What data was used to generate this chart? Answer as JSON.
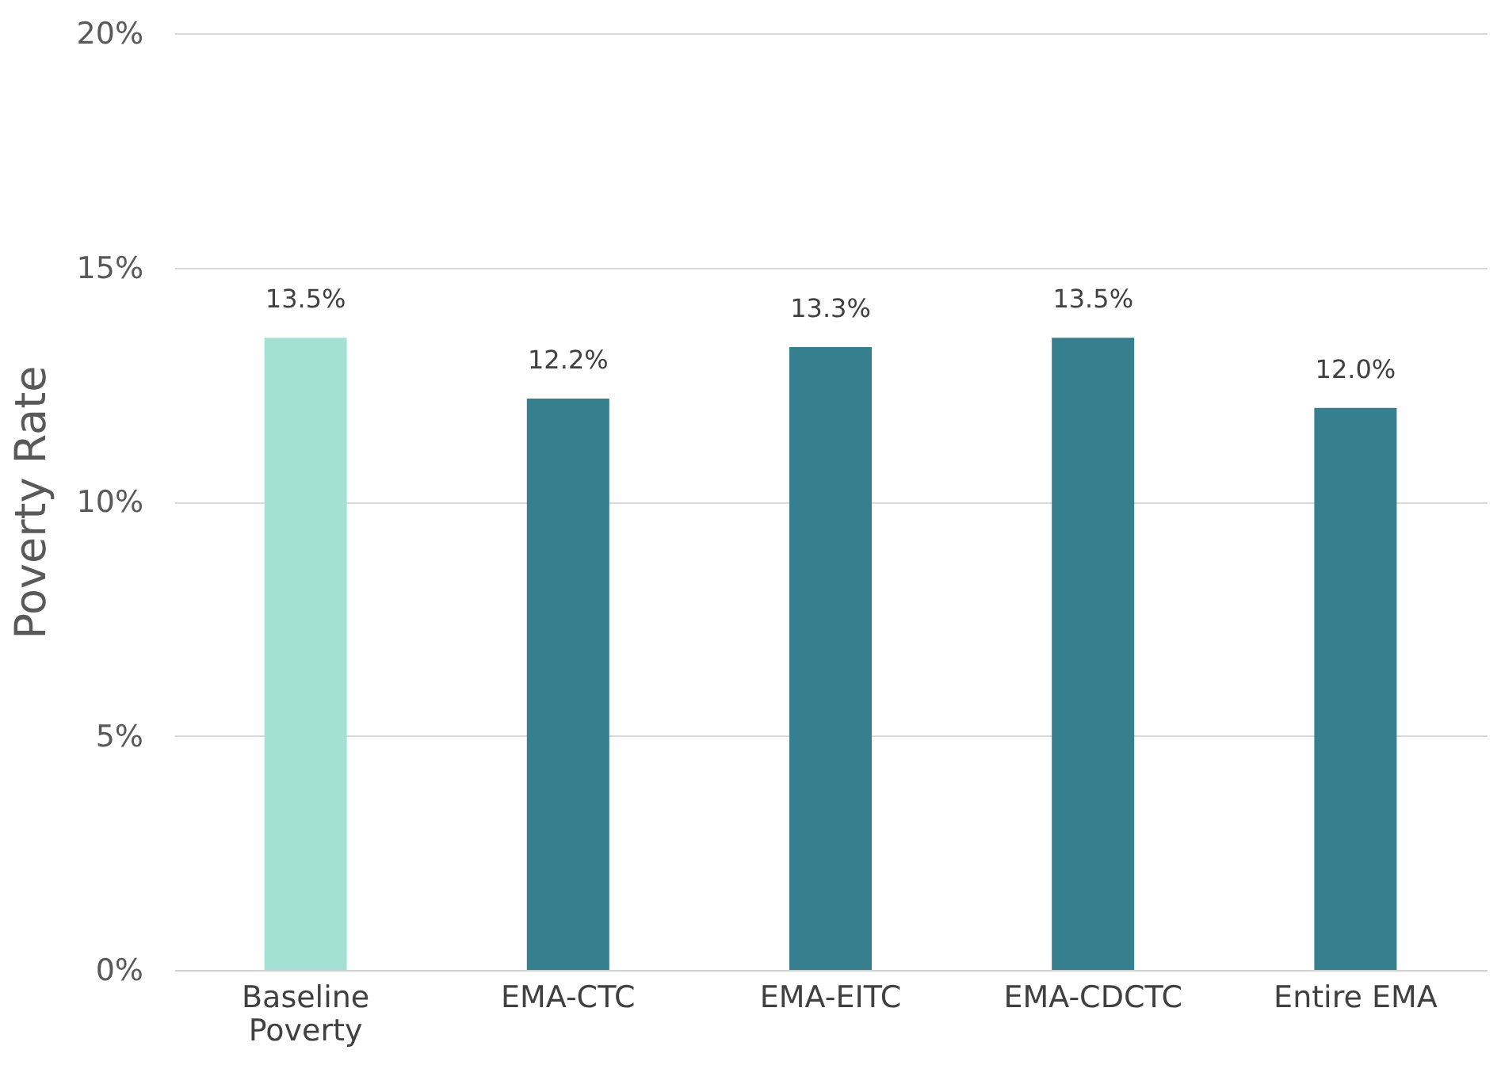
{
  "chart_data": {
    "type": "bar",
    "ylabel": "Poverty Rate",
    "categories": [
      "Baseline Poverty",
      "EMA-CTC",
      "EMA-EITC",
      "EMA-CDCTC",
      "Entire EMA"
    ],
    "values": [
      13.5,
      12.2,
      13.3,
      13.5,
      12.0
    ],
    "colors": [
      "#a3e2d2",
      "#367f8e",
      "#367f8e",
      "#367f8e",
      "#367f8e"
    ],
    "value_labels": [
      "13.5%",
      "12.2%",
      "13.3%",
      "13.5%",
      "12.0%"
    ],
    "ylim": [
      0,
      20
    ],
    "yticks": [
      {
        "value": 0,
        "label": "0%"
      },
      {
        "value": 5,
        "label": "5%"
      },
      {
        "value": 10,
        "label": "10%"
      },
      {
        "value": 15,
        "label": "15%"
      },
      {
        "value": 20,
        "label": "20%"
      }
    ],
    "grid": "y"
  }
}
